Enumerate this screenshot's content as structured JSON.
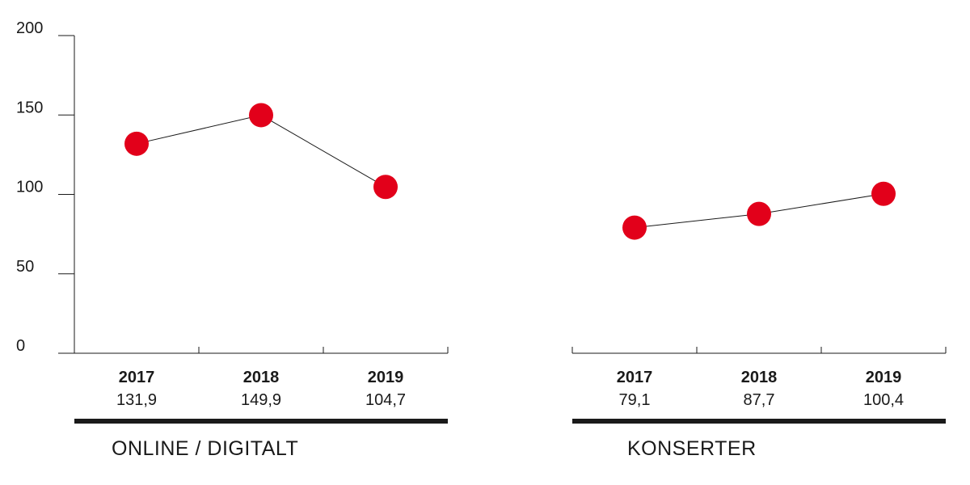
{
  "chart_data": [
    {
      "type": "line",
      "title": "ONLINE / DIGITALT",
      "categories": [
        "2017",
        "2018",
        "2019"
      ],
      "values": [
        131.9,
        149.9,
        104.7
      ],
      "value_labels": [
        "131,9",
        "149,9",
        "104,7"
      ],
      "ylim": [
        0,
        200
      ],
      "yticks": [
        0,
        50,
        100,
        150,
        200
      ],
      "ytick_labels": [
        "0",
        "50",
        "100",
        "150",
        "200"
      ],
      "show_y_axis": true,
      "grid": false
    },
    {
      "type": "line",
      "title": "KONSERTER",
      "categories": [
        "2017",
        "2018",
        "2019"
      ],
      "values": [
        79.1,
        87.7,
        100.4
      ],
      "value_labels": [
        "79,1",
        "87,7",
        "100,4"
      ],
      "ylim": [
        0,
        200
      ],
      "show_y_axis": false,
      "grid": false
    }
  ],
  "colors": {
    "marker": "#e2001a",
    "line": "#1a1a1a",
    "axis": "#1a1a1a",
    "rule": "#1a1a1a"
  }
}
